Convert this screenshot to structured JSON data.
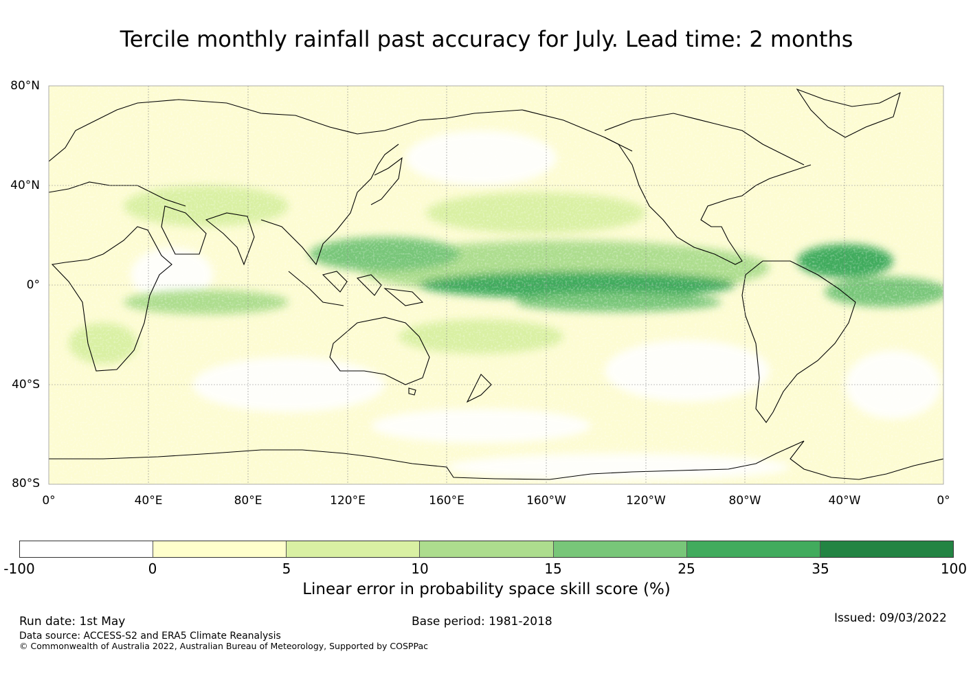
{
  "title": "Tercile monthly rainfall past accuracy for July. Lead time: 2 months",
  "lat_labels": [
    "80°N",
    "40°N",
    "0°",
    "40°S",
    "80°S"
  ],
  "lon_labels": [
    "0°",
    "40°E",
    "80°E",
    "120°E",
    "160°E",
    "160°W",
    "120°W",
    "80°W",
    "40°W",
    "0°"
  ],
  "colorbar": {
    "title": "Linear error in probability space skill score (%)",
    "ticks": [
      "-100",
      "0",
      "5",
      "10",
      "15",
      "25",
      "35",
      "100"
    ],
    "colors": [
      "#ffffff",
      "#ffffcc",
      "#d9f0a3",
      "#addd8e",
      "#78c679",
      "#41ab5d",
      "#238443"
    ]
  },
  "footer": {
    "run_date": "Run date: 1st May",
    "base_period": "Base period: 1981-2018",
    "issued": "Issued: 09/03/2022",
    "data_source": "Data source: ACCESS-S2 and ERA5 Climate Reanalysis",
    "copyright": "© Commonwealth of Australia 2022, Australian Bureau of Meteorology, Supported by COSPPac"
  }
}
